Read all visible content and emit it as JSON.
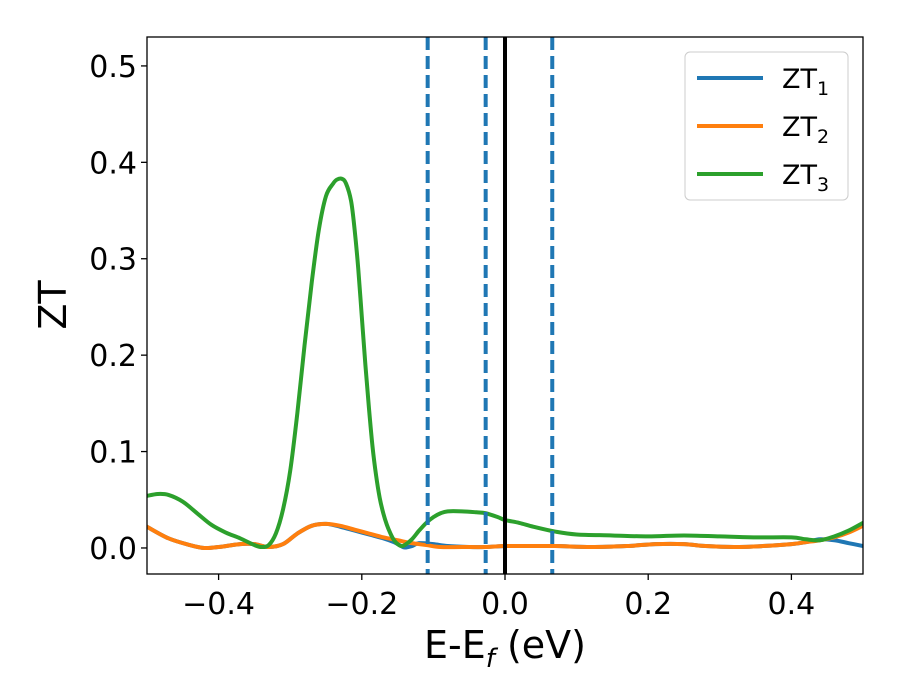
{
  "chart_data": {
    "type": "line",
    "xlabel": "E-E",
    "xlabel_sub": "f",
    "xlabel_unit": " (eV)",
    "ylabel": "ZT",
    "xlim": [
      -0.5,
      0.5
    ],
    "ylim": [
      -0.027,
      0.53
    ],
    "xticks": [
      -0.4,
      -0.2,
      0.0,
      0.2,
      0.4
    ],
    "xtick_labels": [
      "−0.4",
      "−0.2",
      "0.0",
      "0.2",
      "0.4"
    ],
    "yticks": [
      0.0,
      0.1,
      0.2,
      0.3,
      0.4,
      0.5
    ],
    "ytick_labels": [
      "0.0",
      "0.1",
      "0.2",
      "0.3",
      "0.4",
      "0.5"
    ],
    "grid": false,
    "legend_position": "top-right",
    "vlines": [
      {
        "x": -0.108,
        "style": "dashed",
        "color": "#1f77b4"
      },
      {
        "x": -0.027,
        "style": "dashed",
        "color": "#1f77b4"
      },
      {
        "x": 0.0,
        "style": "solid",
        "color": "#000000"
      },
      {
        "x": 0.066,
        "style": "dashed",
        "color": "#1f77b4"
      }
    ],
    "series": [
      {
        "name": "ZT",
        "name_sub": "1",
        "color": "#1f77b4",
        "x": [
          -0.5,
          -0.47,
          -0.44,
          -0.42,
          -0.4,
          -0.37,
          -0.35,
          -0.33,
          -0.31,
          -0.29,
          -0.27,
          -0.25,
          -0.23,
          -0.21,
          -0.19,
          -0.17,
          -0.155,
          -0.145,
          -0.14,
          -0.13,
          -0.12,
          -0.1,
          -0.08,
          -0.05,
          -0.027,
          0.0,
          0.03,
          0.07,
          0.12,
          0.17,
          0.21,
          0.25,
          0.28,
          0.32,
          0.36,
          0.4,
          0.42,
          0.44,
          0.46,
          0.48,
          0.5
        ],
        "y": [
          0.022,
          0.01,
          0.003,
          0.0,
          0.001,
          0.004,
          0.004,
          0.001,
          0.004,
          0.015,
          0.023,
          0.025,
          0.022,
          0.018,
          0.014,
          0.01,
          0.006,
          0.002,
          0.0005,
          0.002,
          0.005,
          0.004,
          0.002,
          0.001,
          0.001,
          0.002,
          0.002,
          0.002,
          0.001,
          0.002,
          0.004,
          0.004,
          0.002,
          0.001,
          0.002,
          0.004,
          0.006,
          0.009,
          0.008,
          0.005,
          0.002
        ]
      },
      {
        "name": "ZT",
        "name_sub": "2",
        "color": "#ff7f0e",
        "x": [
          -0.5,
          -0.47,
          -0.44,
          -0.42,
          -0.4,
          -0.37,
          -0.35,
          -0.33,
          -0.31,
          -0.29,
          -0.27,
          -0.25,
          -0.23,
          -0.21,
          -0.19,
          -0.17,
          -0.15,
          -0.13,
          -0.11,
          -0.09,
          -0.06,
          -0.027,
          0.0,
          0.03,
          0.07,
          0.12,
          0.17,
          0.21,
          0.25,
          0.28,
          0.32,
          0.36,
          0.4,
          0.42,
          0.44,
          0.46,
          0.48,
          0.5
        ],
        "y": [
          0.022,
          0.01,
          0.003,
          0.0,
          0.001,
          0.004,
          0.004,
          0.001,
          0.004,
          0.015,
          0.023,
          0.025,
          0.023,
          0.019,
          0.015,
          0.011,
          0.008,
          0.005,
          0.003,
          0.001,
          0.001,
          0.001,
          0.002,
          0.002,
          0.002,
          0.001,
          0.002,
          0.004,
          0.004,
          0.002,
          0.001,
          0.002,
          0.004,
          0.006,
          0.008,
          0.011,
          0.016,
          0.023
        ]
      },
      {
        "name": "ZT",
        "name_sub": "3",
        "color": "#2ca02c",
        "x": [
          -0.5,
          -0.485,
          -0.47,
          -0.45,
          -0.43,
          -0.41,
          -0.39,
          -0.37,
          -0.35,
          -0.34,
          -0.33,
          -0.32,
          -0.31,
          -0.3,
          -0.29,
          -0.28,
          -0.27,
          -0.26,
          -0.25,
          -0.24,
          -0.235,
          -0.228,
          -0.222,
          -0.215,
          -0.21,
          -0.205,
          -0.2,
          -0.195,
          -0.19,
          -0.185,
          -0.18,
          -0.175,
          -0.17,
          -0.165,
          -0.16,
          -0.155,
          -0.15,
          -0.145,
          -0.14,
          -0.13,
          -0.12,
          -0.11,
          -0.1,
          -0.09,
          -0.08,
          -0.06,
          -0.04,
          -0.027,
          -0.01,
          0.0,
          0.02,
          0.04,
          0.07,
          0.1,
          0.15,
          0.2,
          0.25,
          0.3,
          0.35,
          0.4,
          0.42,
          0.44,
          0.46,
          0.48,
          0.5
        ],
        "y": [
          0.054,
          0.056,
          0.055,
          0.048,
          0.036,
          0.024,
          0.016,
          0.01,
          0.003,
          0.001,
          0.003,
          0.015,
          0.04,
          0.08,
          0.14,
          0.21,
          0.275,
          0.33,
          0.365,
          0.378,
          0.382,
          0.383,
          0.378,
          0.36,
          0.33,
          0.29,
          0.24,
          0.19,
          0.145,
          0.105,
          0.075,
          0.052,
          0.036,
          0.024,
          0.015,
          0.008,
          0.004,
          0.002,
          0.003,
          0.009,
          0.018,
          0.026,
          0.032,
          0.036,
          0.038,
          0.038,
          0.037,
          0.036,
          0.032,
          0.029,
          0.026,
          0.022,
          0.017,
          0.014,
          0.013,
          0.012,
          0.013,
          0.012,
          0.011,
          0.011,
          0.009,
          0.008,
          0.012,
          0.018,
          0.026
        ]
      }
    ]
  }
}
